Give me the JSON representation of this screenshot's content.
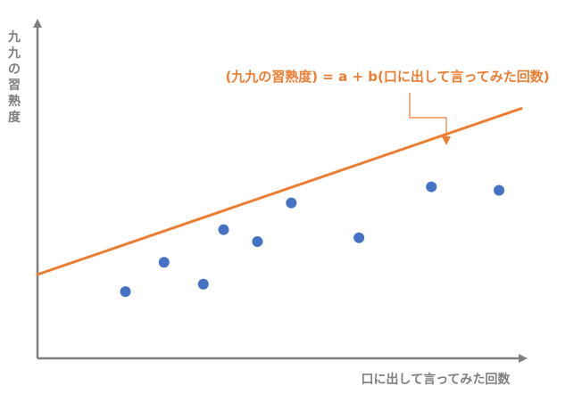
{
  "chart_data": {
    "type": "scatter",
    "title": "",
    "xlabel": "口に出して言ってみた回数",
    "ylabel": "九九の習熟度",
    "grid": false,
    "legend": "none",
    "x": [
      1.15,
      1.72,
      2.3,
      2.6,
      3.1,
      3.6,
      4.6,
      5.67,
      6.67
    ],
    "y": [
      1.92,
      2.83,
      2.15,
      3.84,
      3.47,
      4.67,
      3.59,
      5.17,
      5.06
    ],
    "xlim": [
      -0.15,
      7.5
    ],
    "ylim": [
      -0.15,
      10.3
    ],
    "trendline": {
      "label": "(九九の習熟度) = a + b(口に出して言ってみた回数)",
      "x": [
        -0.15,
        7.0
      ],
      "y": [
        2.45,
        7.6
      ]
    },
    "colors": {
      "points": "#4472c4",
      "trendline": "#ed7d31",
      "axes": "#7f7f7f"
    }
  }
}
